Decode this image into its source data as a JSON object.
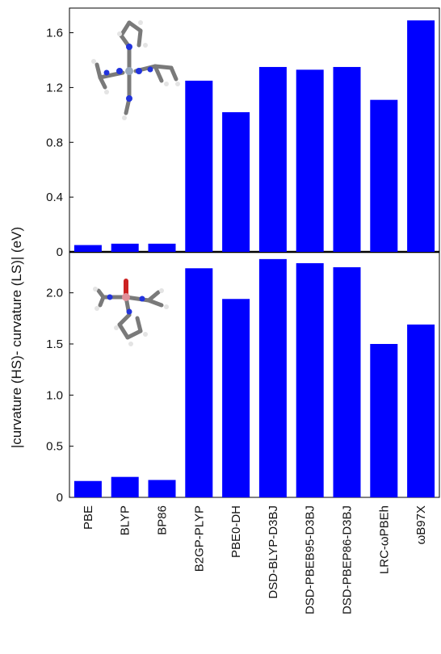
{
  "chart_data": {
    "type": "bar",
    "ylabel": "|curvature (HS)- curvature (LS)| (eV)",
    "bar_color": "#0000ff",
    "categories": [
      "PBE",
      "BLYP",
      "BP86",
      "B2GP-PLYP",
      "PBE0-DH",
      "DSD-BLYP-D3BJ",
      "DSD-PBEB95-D3BJ",
      "DSD-PBEP86-D3BJ",
      "LRC-ωPBEh",
      "ωB97X"
    ],
    "panels": [
      {
        "name": "",
        "ylim": [
          0,
          1.78
        ],
        "yticks": [
          "0",
          "0.4",
          "0.8",
          "1.2",
          "1.6"
        ],
        "ytick_values": [
          0,
          0.4,
          0.8,
          1.2,
          1.6
        ],
        "values": [
          0.05,
          0.06,
          0.06,
          1.25,
          1.02,
          1.35,
          1.33,
          1.35,
          1.11,
          1.69
        ]
      },
      {
        "name": "",
        "ylim": [
          0,
          2.4
        ],
        "yticks": [
          "0",
          "0.5",
          "1.0",
          "1.5",
          "2.0"
        ],
        "ytick_values": [
          0,
          0.5,
          1.0,
          1.5,
          2.0
        ],
        "values": [
          0.16,
          0.2,
          0.17,
          2.24,
          1.94,
          2.33,
          2.29,
          2.25,
          1.5,
          1.69
        ]
      }
    ],
    "grid": false,
    "legend": "none"
  }
}
